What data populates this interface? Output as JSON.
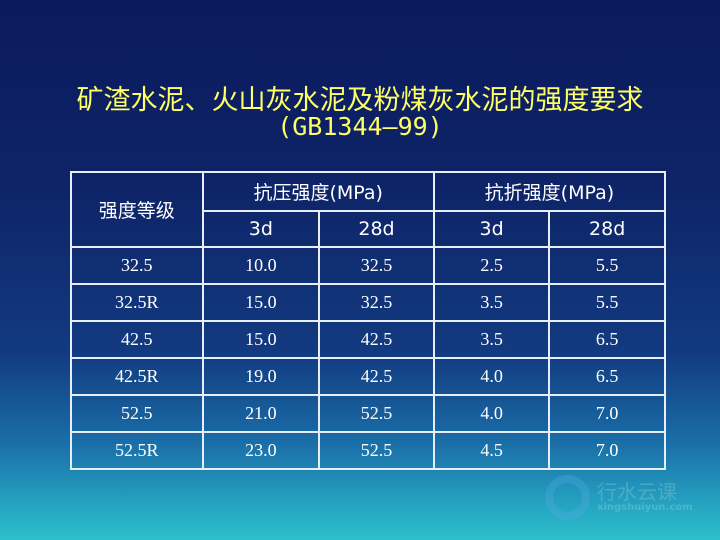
{
  "title": {
    "line1": "矿渣水泥、火山灰水泥及粉煤灰水泥的强度要求",
    "line2": "(GB1344—99)"
  },
  "table": {
    "grade_header": "强度等级",
    "compressive_header": "抗压强度(MPa)",
    "flexural_header": "抗折强度(MPa)",
    "sub_headers": [
      "3d",
      "28d",
      "3d",
      "28d"
    ],
    "rows": [
      [
        "32.5",
        "10.0",
        "32.5",
        "2.5",
        "5.5"
      ],
      [
        "32.5R",
        "15.0",
        "32.5",
        "3.5",
        "5.5"
      ],
      [
        "42.5",
        "15.0",
        "42.5",
        "3.5",
        "6.5"
      ],
      [
        "42.5R",
        "19.0",
        "42.5",
        "4.0",
        "6.5"
      ],
      [
        "52.5",
        "21.0",
        "52.5",
        "4.0",
        "7.0"
      ],
      [
        "52.5R",
        "23.0",
        "52.5",
        "4.5",
        "7.0"
      ]
    ]
  },
  "watermark": {
    "name": "行水云课",
    "url": "xingshuiyun.com"
  },
  "colors": {
    "title": "#ffff66",
    "text": "#ffffff",
    "border": "#e8eef8"
  }
}
